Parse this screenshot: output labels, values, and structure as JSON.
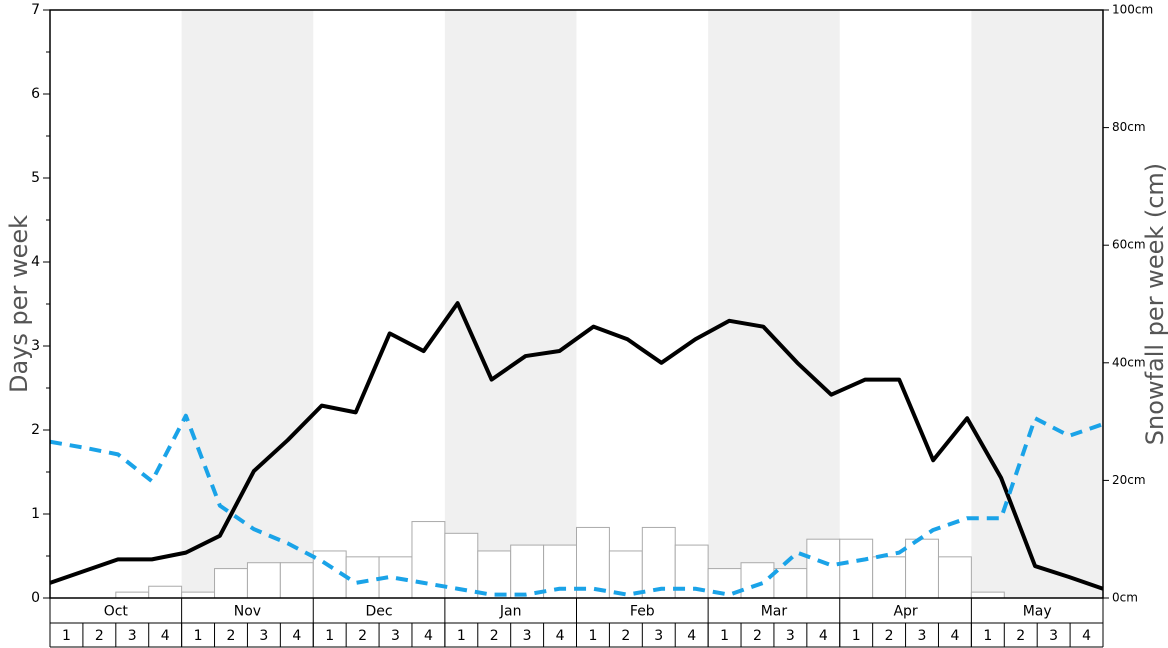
{
  "chart_data": {
    "type": "combo",
    "y_label": "Days per week",
    "y2_label": "Snowfall per week (cm)",
    "months": [
      "Oct",
      "Nov",
      "Dec",
      "Jan",
      "Feb",
      "Mar",
      "Apr",
      "May"
    ],
    "categories": [
      "1",
      "2",
      "3",
      "4",
      "1",
      "2",
      "3",
      "4",
      "1",
      "2",
      "3",
      "4",
      "1",
      "2",
      "3",
      "4",
      "1",
      "2",
      "3",
      "4",
      "1",
      "2",
      "3",
      "4",
      "1",
      "2",
      "3",
      "4",
      "1",
      "2",
      "3",
      "4"
    ],
    "ylim": [
      0,
      7
    ],
    "yticks": [
      0,
      1,
      2,
      3,
      4,
      5,
      6,
      7
    ],
    "y2lim": [
      0,
      100
    ],
    "y2ticks": [
      {
        "value": 0,
        "label": "0cm"
      },
      {
        "value": 20,
        "label": "20cm"
      },
      {
        "value": 40,
        "label": "40cm"
      },
      {
        "value": 60,
        "label": "60cm"
      },
      {
        "value": 80,
        "label": "80cm"
      },
      {
        "value": 100,
        "label": "100cm"
      }
    ],
    "shade_color": "#f0f0f0",
    "series": [
      {
        "kind": "bar",
        "axis": "y2",
        "color": "#ffffff",
        "stroke": "#aaaaaa",
        "values": [
          0,
          0,
          1,
          2,
          1,
          5,
          6,
          6,
          8,
          7,
          7,
          13,
          11,
          8,
          9,
          9,
          12,
          8,
          12,
          9,
          5,
          6,
          5,
          10,
          10,
          7,
          10,
          7,
          1,
          0,
          0,
          0
        ]
      },
      {
        "kind": "line",
        "color": "#000000",
        "values": [
          0.18,
          0.32,
          0.46,
          0.46,
          0.54,
          0.74,
          1.51,
          1.88,
          2.29,
          2.21,
          3.15,
          2.94,
          3.51,
          2.6,
          2.88,
          2.94,
          3.23,
          3.08,
          2.8,
          3.08,
          3.3,
          3.23,
          2.8,
          2.42,
          2.6,
          2.6,
          1.64,
          2.14,
          1.43,
          0.38,
          0.25,
          0.11
        ]
      },
      {
        "kind": "dashed-line",
        "color": "#1aa3e8",
        "values": [
          1.86,
          1.79,
          1.71,
          1.39,
          2.17,
          1.1,
          0.82,
          0.65,
          0.44,
          0.18,
          0.25,
          0.18,
          0.11,
          0.04,
          0.04,
          0.11,
          0.11,
          0.04,
          0.11,
          0.11,
          0.04,
          0.18,
          0.54,
          0.39,
          0.46,
          0.54,
          0.81,
          0.95,
          0.95,
          2.14,
          1.93,
          2.07
        ]
      }
    ]
  }
}
